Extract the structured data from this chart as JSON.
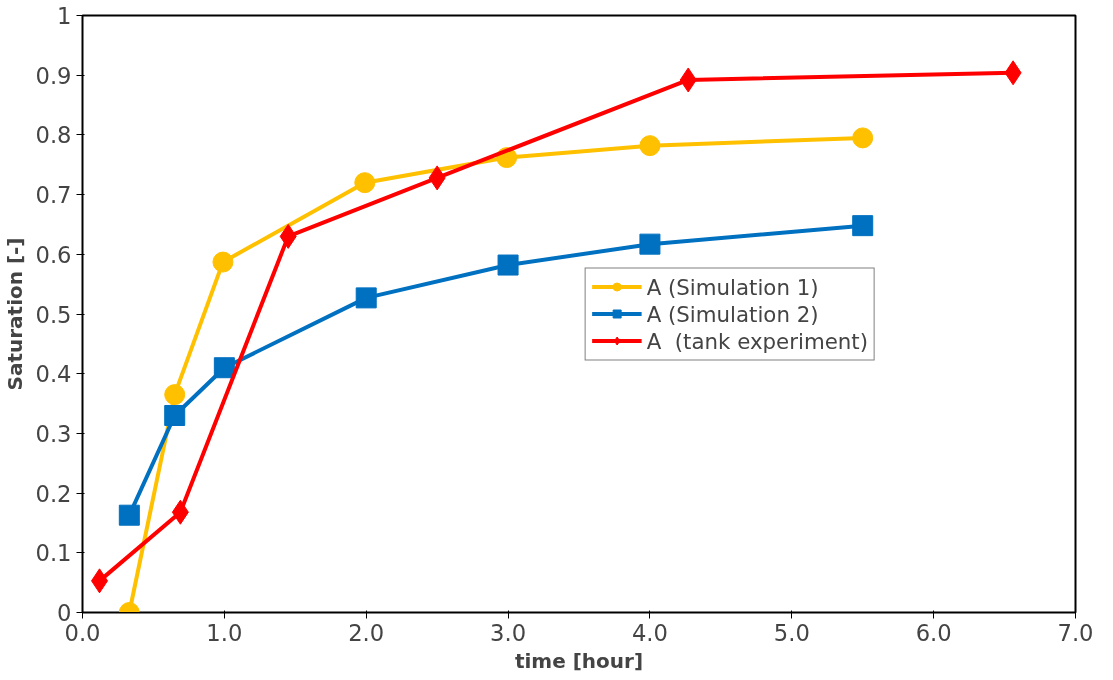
{
  "chart_data": {
    "type": "line",
    "xlabel": "time [hour]",
    "ylabel": "Saturation [-]",
    "xlim": [
      0,
      7
    ],
    "xticks": [
      {
        "value": 0,
        "label": "0.0"
      },
      {
        "value": 1,
        "label": "1.0"
      },
      {
        "value": 2,
        "label": "2.0"
      },
      {
        "value": 3,
        "label": "3.0"
      },
      {
        "value": 4,
        "label": "4.0"
      },
      {
        "value": 5,
        "label": "5.0"
      },
      {
        "value": 6,
        "label": "6.0"
      },
      {
        "value": 7,
        "label": "7.0"
      }
    ],
    "ylim": [
      0,
      1
    ],
    "yticks": [
      0,
      0.1,
      0.2,
      0.3,
      0.4,
      0.5,
      0.6,
      0.7,
      0.8,
      0.9,
      1
    ],
    "grid": false,
    "legend": "right",
    "line_style": "solid",
    "series": [
      {
        "name": "A (Simulation 1)",
        "color": "#ffc000",
        "marker": "circle",
        "x": [
          0.33,
          0.65,
          0.99,
          1.99,
          2.99,
          4.0,
          5.5
        ],
        "values": [
          0.0,
          0.365,
          0.587,
          0.72,
          0.762,
          0.782,
          0.795
        ]
      },
      {
        "name": "A (Simulation 2)",
        "color": "#0070c0",
        "marker": "square",
        "x": [
          0.33,
          0.65,
          1.0,
          2.0,
          3.0,
          4.0,
          5.5
        ],
        "values": [
          0.163,
          0.33,
          0.41,
          0.527,
          0.582,
          0.617,
          0.648
        ]
      },
      {
        "name": "A  (tank experiment)",
        "color": "#ff0000",
        "marker": "diamond",
        "x": [
          0.12,
          0.69,
          1.45,
          2.5,
          4.27,
          6.56
        ],
        "values": [
          0.053,
          0.168,
          0.63,
          0.728,
          0.892,
          0.904
        ]
      }
    ]
  }
}
